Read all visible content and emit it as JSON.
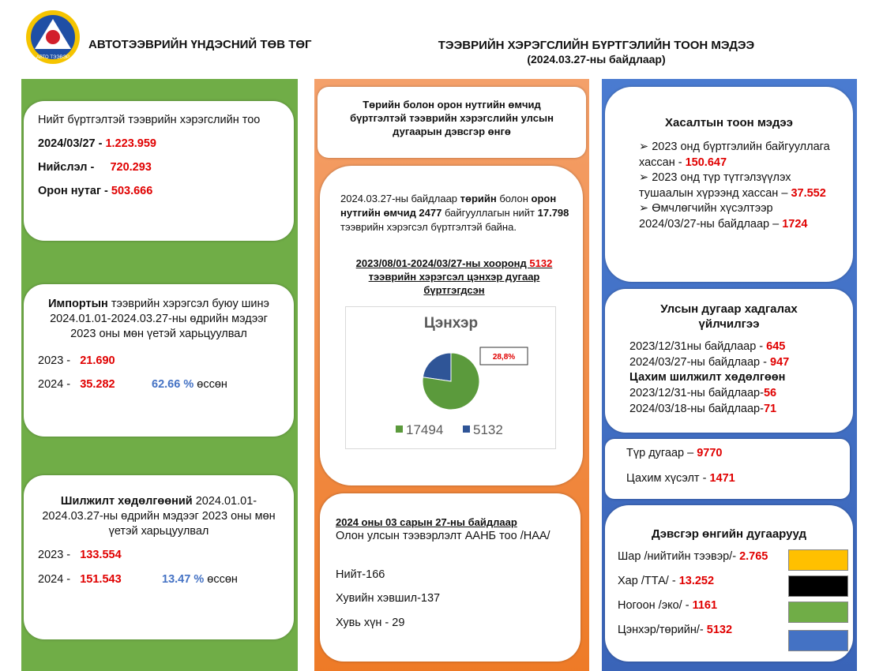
{
  "header": {
    "logo_text": "АВТО ТЭЭВЭР",
    "org": "АВТОТЭЭВРИЙН ҮНДЭСНИЙ ТӨВ ТӨГ",
    "title": "ТЭЭВРИЙН ХЭРЭГСЛИЙН БҮРТГЭЛИЙН ТООН МЭДЭЭ",
    "subtitle": "(2024.03.27-ны байдлаар)"
  },
  "total": {
    "title": "Нийт бүртгэлтэй тээврийн хэрэгслийн тоо",
    "rows": [
      [
        "2024/03/27  -",
        "1.223.959"
      ],
      [
        "Нийслэл -",
        "720.293"
      ],
      [
        "Орон нутаг -",
        "503.666"
      ]
    ]
  },
  "import": {
    "lead": "Импортын",
    "text": "тээврийн хэрэгсэл буюу шинэ 2024.01.01-2024.03.27-ны өдрийн мэдээг 2023 оны мөн үетэй харьцуулвал",
    "rows": [
      [
        "2023 -",
        "21.690"
      ],
      [
        "2024 -",
        "35.282"
      ]
    ],
    "change": "62.66",
    "unit": "%",
    "note": "өссөн"
  },
  "transfer": {
    "lead": "Шилжилт хөдөлгөөний",
    "text": "2024.01.01-2024.03.27-ны өдрийн мэдээг 2023 оны мөн үетэй харьцуулвал",
    "rows": [
      [
        "2023 -",
        "133.554"
      ],
      [
        "2024 -",
        "151.543"
      ]
    ],
    "change": "13.47",
    "unit": "%",
    "note": "өссөн"
  },
  "state": {
    "title": "Төрийн болон орон нутгийн өмчид бүртгэлтэй тээврийн хэрэгслийн улсын дугаарын дэвсгэр өнгө",
    "para": [
      "2024.03.27-ны байдлаар ",
      "төрийн",
      " болон ",
      "орон нутгийн өмчид  2477",
      " байгууллагын нийт ",
      "17.798",
      " тээврийн хэрэгсэл бүртгэлтэй байна."
    ],
    "period": [
      "2023/08/01-2024/03/27-ны хооронд ",
      "5132",
      " тээврийн хэрэгсэл цэнхэр дугаар бүртгэгдсэн"
    ]
  },
  "pie": {
    "type": "pie",
    "title": "Цэнхэр",
    "labels": [
      "17494",
      "5132"
    ],
    "values": [
      17494,
      5132
    ],
    "colors": [
      "#5b9a3c",
      "#2f5597"
    ],
    "annotation": "28,8%"
  },
  "aanb": {
    "heading": "2024 оны 03 сарын 27-ны байдлаар",
    "subtitle": "Олон улсын тээвэрлэлт ААНБ тоо /НАА/",
    "items": [
      "Нийт-166",
      "Хувийн хэвшил-137",
      "Хувь хүн - 29"
    ]
  },
  "cancel": {
    "title": "Хасалтын тоон мэдээ",
    "items": [
      [
        "2023 онд бүртгэлийн байгууллага хассан - ",
        "150.647"
      ],
      [
        "2023 онд түр түтгэлзүүлэх тушаалын хүрээнд хассан – ",
        "37.552"
      ],
      [
        "Өмчлөгчийн хүсэлтээр 2024/03/27-ны байдлаар – ",
        "1724"
      ]
    ]
  },
  "reserve": {
    "title": "Улсын дугаар хадгалах үйлчилгээ",
    "rows": [
      [
        "2023/12/31ны байдлаар  - ",
        "645"
      ],
      [
        "2024/03/27-ны байдлаар  - ",
        "947"
      ]
    ],
    "sub": "Цахим шилжилт хөдөлгөөн",
    "rows2": [
      [
        "2023/12/31-ны байдлаар-",
        "56"
      ],
      [
        "2024/03/18-ны байдлаар-",
        "71"
      ]
    ]
  },
  "temp": {
    "rows": [
      [
        "Түр дугаар – ",
        "9770"
      ],
      [
        "Цахим хүсэлт - ",
        "1471"
      ]
    ]
  },
  "plates": {
    "title": "Дэвсгэр өнгийн дугаарууд",
    "items": [
      {
        "label": "Шар /нийтийн тээвэр/- ",
        "value": "2.765",
        "color": "#ffc000"
      },
      {
        "label": "Хар /ТТА/ - ",
        "value": "13.252",
        "color": "#000000"
      },
      {
        "label": "Ногоон /эко/ - ",
        "value": "1161",
        "color": "#70ad47"
      },
      {
        "label": "Цэнхэр/төрийн/- ",
        "value": "5132",
        "color": "#4472c4"
      }
    ]
  }
}
